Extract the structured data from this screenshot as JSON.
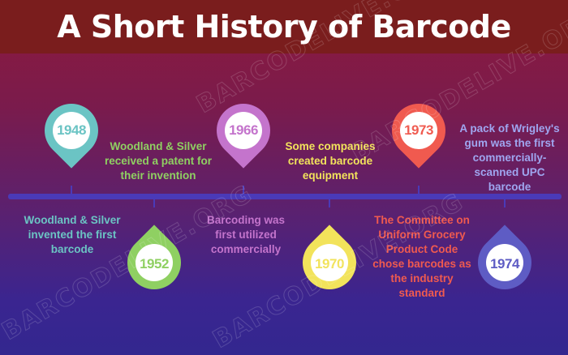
{
  "title": "A Short History of Barcode",
  "watermark": "BARCODELIVE.ORG",
  "colors": {
    "teal": "#6bc4c4",
    "green": "#8fd062",
    "violet": "#c474cc",
    "yellow": "#f2e35b",
    "red": "#f05a4f",
    "indigo": "#5e5cc4"
  },
  "events": [
    {
      "year": "1948",
      "description": "Woodland & Silver invented the first barcode"
    },
    {
      "year": "1952",
      "description": "Woodland & Silver received a patent for their invention"
    },
    {
      "year": "1966",
      "description": "Barcoding was first utilized commercially"
    },
    {
      "year": "1970",
      "description": "Some companies created barcode equipment"
    },
    {
      "year": "1973",
      "description": "The Committee on Uniform Grocery Product Code chose barcodes as the industry standard"
    },
    {
      "year": "1974",
      "description": "A pack of Wrigley's gum was the first commercially-scanned UPC barcode"
    }
  ]
}
